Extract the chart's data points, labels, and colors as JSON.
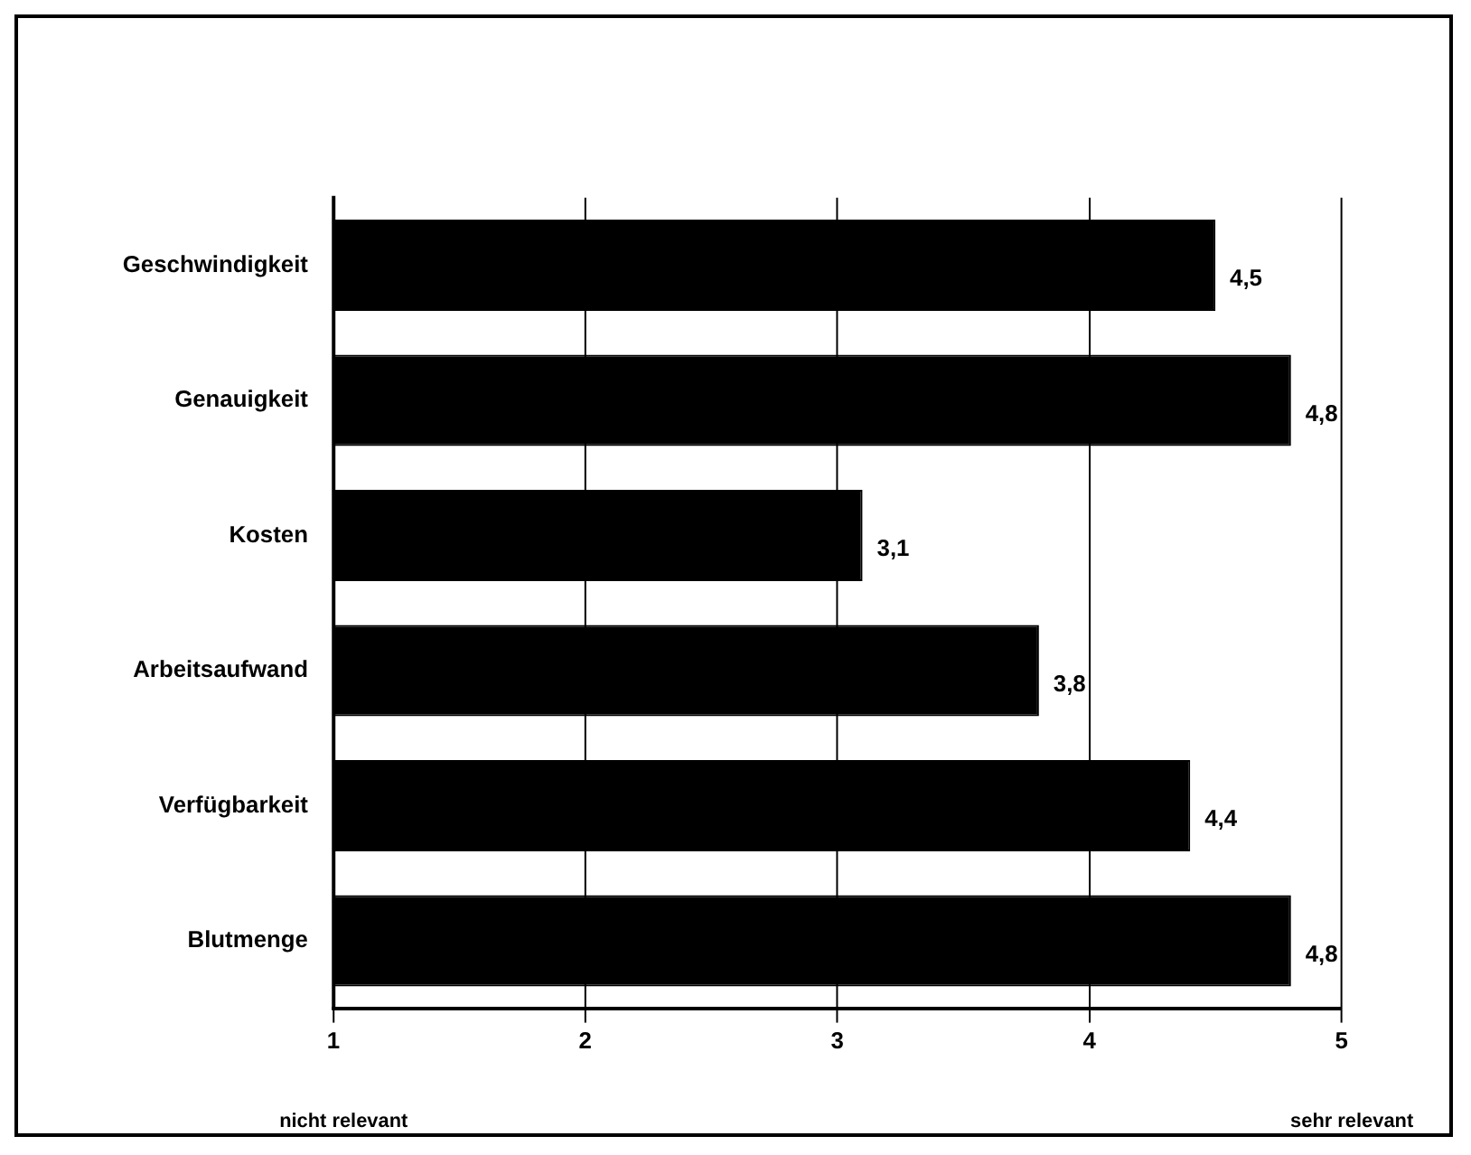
{
  "chart_data": {
    "type": "bar",
    "orientation": "horizontal",
    "categories": [
      "Geschwindigkeit",
      "Genauigkeit",
      "Kosten",
      "Arbeitsaufwand",
      "Verfügbarkeit",
      "Blutmenge"
    ],
    "values": [
      4.5,
      4.8,
      3.1,
      3.8,
      4.4,
      4.8
    ],
    "value_labels": [
      "4,5",
      "4,8",
      "3,1",
      "3,8",
      "4,4",
      "4,8"
    ],
    "color": "#000000",
    "xlim": [
      1,
      5
    ],
    "xticks": [
      1,
      2,
      3,
      4,
      5
    ],
    "grid": "x",
    "legend": false,
    "annotations": [
      "nicht relevant",
      "sehr relevant"
    ]
  }
}
